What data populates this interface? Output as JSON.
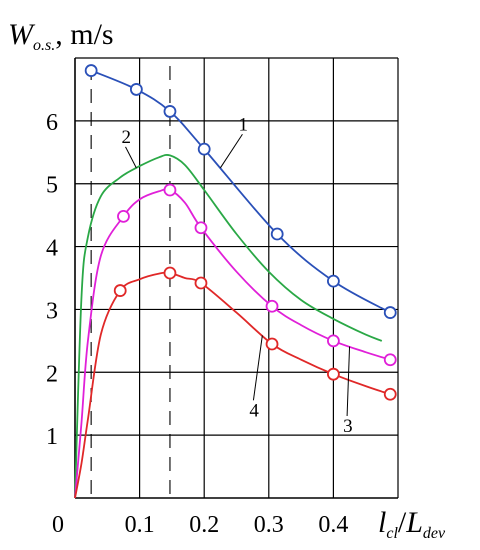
{
  "chart_data": {
    "type": "line",
    "xlim": [
      0,
      0.5
    ],
    "ylim": [
      0,
      7
    ],
    "grid": true,
    "ylabel": {
      "main": "W",
      "sub": "o.s.",
      "unit": ", m/s"
    },
    "xlabel": {
      "num_main": "l",
      "num_sub": "cl",
      "sep": "/",
      "den_main": "L",
      "den_sub": "dev"
    },
    "x_ticks": [
      "0",
      "0.1",
      "0.2",
      "0.3",
      "0.4"
    ],
    "y_ticks": [
      "1",
      "2",
      "3",
      "4",
      "5",
      "6"
    ],
    "x_tick_values": [
      0,
      0.1,
      0.2,
      0.3,
      0.4
    ],
    "y_tick_values": [
      1,
      2,
      3,
      4,
      5,
      6
    ],
    "dashed_verticals": [
      0.025,
      0.147
    ],
    "series": [
      {
        "label": "1",
        "color": "#2a50b8",
        "x": [
          0.025,
          0.095,
          0.147,
          0.2,
          0.313,
          0.4,
          0.488
        ],
        "y": [
          6.8,
          6.5,
          6.15,
          5.55,
          4.2,
          3.45,
          2.95
        ],
        "markers": [
          0.025,
          0.095,
          0.147,
          0.2,
          0.313,
          0.4,
          0.488
        ]
      },
      {
        "label": "2",
        "color": "#2aa846",
        "x": [
          0,
          0.01,
          0.02,
          0.04,
          0.07,
          0.1,
          0.13,
          0.147,
          0.17,
          0.2,
          0.25,
          0.3,
          0.35,
          0.4,
          0.45,
          0.475
        ],
        "y": [
          0,
          3.2,
          4.15,
          4.8,
          5.1,
          5.28,
          5.42,
          5.45,
          5.3,
          4.9,
          4.2,
          3.6,
          3.15,
          2.85,
          2.6,
          2.5
        ],
        "markers": []
      },
      {
        "label": "3",
        "color": "#e020d8",
        "x": [
          0,
          0.01,
          0.02,
          0.04,
          0.075,
          0.1,
          0.13,
          0.147,
          0.17,
          0.195,
          0.25,
          0.305,
          0.35,
          0.4,
          0.45,
          0.488
        ],
        "y": [
          0,
          1.2,
          2.5,
          3.85,
          4.48,
          4.75,
          4.88,
          4.9,
          4.7,
          4.3,
          3.6,
          3.05,
          2.75,
          2.5,
          2.32,
          2.2
        ],
        "markers": [
          0.075,
          0.147,
          0.195,
          0.305,
          0.4,
          0.488
        ]
      },
      {
        "label": "4",
        "color": "#e02828",
        "x": [
          0,
          0.01,
          0.02,
          0.04,
          0.07,
          0.1,
          0.13,
          0.147,
          0.17,
          0.195,
          0.25,
          0.305,
          0.35,
          0.4,
          0.45,
          0.488
        ],
        "y": [
          0,
          0.55,
          1.25,
          2.6,
          3.3,
          3.48,
          3.57,
          3.58,
          3.5,
          3.42,
          2.95,
          2.45,
          2.2,
          1.97,
          1.78,
          1.65
        ],
        "markers": [
          0.07,
          0.147,
          0.195,
          0.305,
          0.4,
          0.488
        ]
      }
    ],
    "curve_labels": [
      {
        "text": "1",
        "series": 0,
        "anchor_x": 0.225,
        "label_x": 0.253,
        "label_y": 5.85
      },
      {
        "text": "2",
        "series": 1,
        "anchor_x": 0.095,
        "label_x": 0.072,
        "label_y": 5.65
      },
      {
        "text": "3",
        "series": 2,
        "anchor_x": 0.425,
        "label_x": 0.415,
        "label_y": 1.05
      },
      {
        "text": "4",
        "series": 3,
        "anchor_x": 0.29,
        "label_x": 0.27,
        "label_y": 1.3
      }
    ]
  }
}
